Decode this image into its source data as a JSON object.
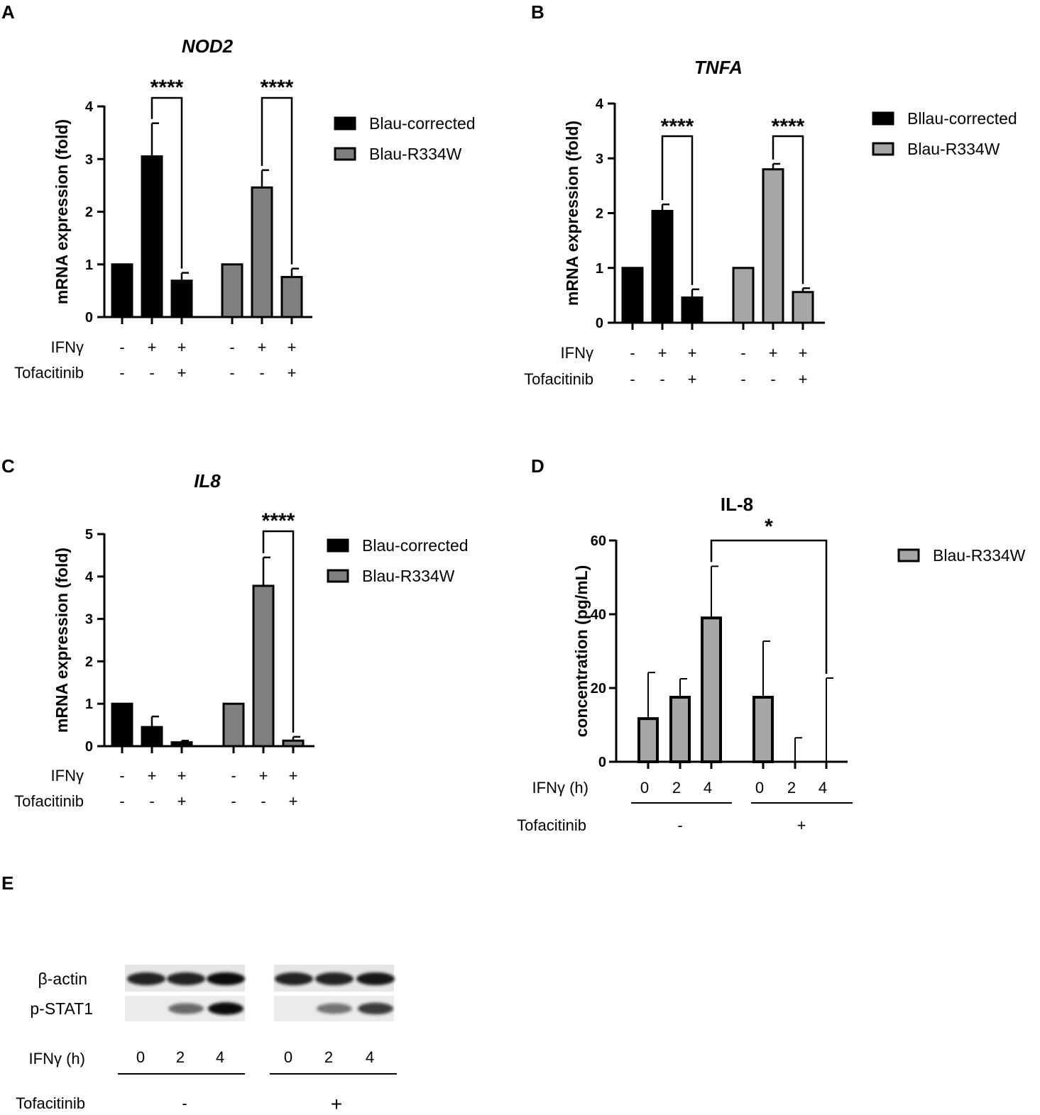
{
  "chart_data": [
    {
      "panel": "A",
      "type": "bar",
      "title": "NOD2",
      "ylabel": "mRNA expression (fold)",
      "ylim": [
        0,
        4
      ],
      "yticks": [
        "0",
        "1",
        "2",
        "3",
        "4"
      ],
      "series": [
        {
          "name": "Blau-corrected",
          "color": "#000000",
          "values": [
            1.0,
            3.05,
            0.69
          ],
          "errors": [
            0,
            0.63,
            0.15
          ]
        },
        {
          "name": "Blau-R334W",
          "color": "#7f7f7f",
          "values": [
            1.0,
            2.46,
            0.76
          ],
          "errors": [
            0,
            0.33,
            0.16
          ]
        }
      ],
      "conditions": [
        {
          "label": "IFNγ",
          "values": [
            "-",
            "+",
            "+",
            "-",
            "+",
            "+"
          ]
        },
        {
          "label": "Tofacitinib",
          "values": [
            "-",
            "-",
            "+",
            "-",
            "-",
            "+"
          ]
        }
      ],
      "significance": [
        "****",
        "****"
      ]
    },
    {
      "panel": "B",
      "type": "bar",
      "title": "TNFA",
      "ylabel": "mRNA expression (fold)",
      "ylim": [
        0,
        4
      ],
      "yticks": [
        "0",
        "1",
        "2",
        "3",
        "4"
      ],
      "series": [
        {
          "name": "Bllau-corrected",
          "color": "#000000",
          "values": [
            1.0,
            2.04,
            0.46
          ],
          "errors": [
            0,
            0.12,
            0.15
          ]
        },
        {
          "name": "Blau-R334W",
          "color": "#a6a6a6",
          "values": [
            1.0,
            2.8,
            0.56
          ],
          "errors": [
            0,
            0.1,
            0.07
          ]
        }
      ],
      "conditions": [
        {
          "label": "IFNγ",
          "values": [
            "-",
            "+",
            "+",
            "-",
            "+",
            "+"
          ]
        },
        {
          "label": "Tofacitinib",
          "values": [
            "-",
            "-",
            "+",
            "-",
            "-",
            "+"
          ]
        }
      ],
      "significance": [
        "****",
        "****"
      ]
    },
    {
      "panel": "C",
      "type": "bar",
      "title": "IL8",
      "ylabel": "mRNA expression (fold)",
      "ylim": [
        0,
        5
      ],
      "yticks": [
        "0",
        "1",
        "2",
        "3",
        "4",
        "5"
      ],
      "series": [
        {
          "name": "Blau-corrected",
          "color": "#000000",
          "values": [
            1.0,
            0.45,
            0.09
          ],
          "errors": [
            0,
            0.25,
            0.04
          ]
        },
        {
          "name": "Blau-R334W",
          "color": "#7f7f7f",
          "values": [
            1.0,
            3.78,
            0.13
          ],
          "errors": [
            0,
            0.67,
            0.09
          ]
        }
      ],
      "conditions": [
        {
          "label": "IFNγ",
          "values": [
            "-",
            "+",
            "+",
            "-",
            "+",
            "+"
          ]
        },
        {
          "label": "Tofacitinib",
          "values": [
            "-",
            "-",
            "+",
            "-",
            "-",
            "+"
          ]
        }
      ],
      "significance": [
        "****"
      ]
    },
    {
      "panel": "D",
      "type": "bar",
      "title": "IL-8",
      "ylabel": "concentration (pg/mL)",
      "ylim": [
        0,
        60
      ],
      "yticks": [
        "0",
        "20",
        "40",
        "60"
      ],
      "series": [
        {
          "name": "Blau-R334W",
          "color": "#a6a6a6",
          "values": [
            11.7,
            17.5,
            39.0,
            17.5,
            0,
            0
          ],
          "errors": [
            12.5,
            5.0,
            14.0,
            15.2,
            6.5,
            22.7
          ]
        }
      ],
      "categories": [
        "0",
        "2",
        "4",
        "0",
        "2",
        "4"
      ],
      "x_group_label": "IFNγ (h)",
      "tofacitinib_label": "Tofacitinib",
      "tofacitinib_groups": [
        "-",
        "+"
      ],
      "significance": [
        "*"
      ]
    }
  ],
  "panels": {
    "letters": [
      "A",
      "B",
      "C",
      "D",
      "E"
    ]
  },
  "blot": {
    "bands": [
      "β-actin",
      "p-STAT1"
    ],
    "x_label": "IFNγ (h)",
    "times": [
      "0",
      "2",
      "4",
      "0",
      "2",
      "4"
    ],
    "tofacitinib_label": "Tofacitinib",
    "tofacitinib_groups": [
      "-",
      "+"
    ],
    "actin_intensity": [
      0.85,
      0.85,
      0.95,
      0.85,
      0.85,
      0.9
    ],
    "pstat_intensity": [
      0.0,
      0.55,
      0.95,
      0.0,
      0.5,
      0.75
    ]
  }
}
